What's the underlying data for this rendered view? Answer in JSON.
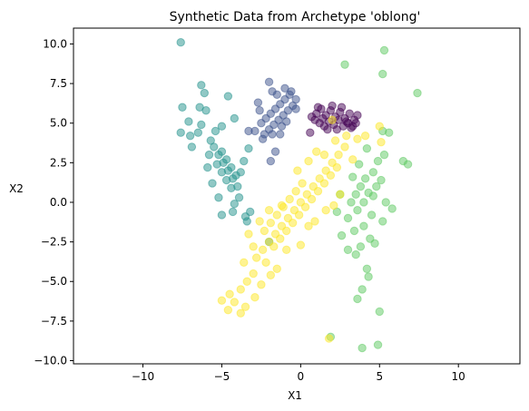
{
  "chart_data": {
    "type": "scatter",
    "title": "Synthetic Data from Archetype 'oblong'",
    "xlabel": "X1",
    "ylabel": "X2",
    "xlim": [
      -14.4,
      13.9
    ],
    "ylim": [
      -10.2,
      11.0
    ],
    "grid": false,
    "legend": "none",
    "marker_alpha": 0.5,
    "xticks": [
      {
        "value": -10,
        "label": "−10"
      },
      {
        "value": -5,
        "label": "−5"
      },
      {
        "value": 0,
        "label": "0"
      },
      {
        "value": 5,
        "label": "5"
      },
      {
        "value": 10,
        "label": "10"
      }
    ],
    "yticks": [
      {
        "value": -10,
        "label": "−10.0"
      },
      {
        "value": -7.5,
        "label": "−7.5"
      },
      {
        "value": -5,
        "label": "−5.0"
      },
      {
        "value": -2.5,
        "label": "−2.5"
      },
      {
        "value": 0,
        "label": "0.0"
      },
      {
        "value": 2.5,
        "label": "2.5"
      },
      {
        "value": 5,
        "label": "5.0"
      },
      {
        "value": 7.5,
        "label": "7.5"
      },
      {
        "value": 10,
        "label": "10.0"
      }
    ],
    "series": [
      {
        "color": "#440154",
        "points": [
          [
            1.0,
            5.6
          ],
          [
            1.3,
            5.9
          ],
          [
            1.6,
            5.5
          ],
          [
            1.9,
            5.8
          ],
          [
            2.2,
            5.4
          ],
          [
            2.5,
            5.7
          ],
          [
            2.8,
            5.3
          ],
          [
            3.1,
            5.6
          ],
          [
            3.4,
            5.2
          ],
          [
            1.2,
            5.0
          ],
          [
            1.5,
            4.8
          ],
          [
            1.8,
            5.1
          ],
          [
            2.1,
            4.9
          ],
          [
            2.4,
            5.2
          ],
          [
            2.7,
            4.8
          ],
          [
            3.0,
            5.0
          ],
          [
            3.3,
            4.8
          ],
          [
            0.9,
            5.2
          ],
          [
            0.7,
            5.4
          ],
          [
            3.6,
            5.5
          ],
          [
            2.0,
            6.1
          ],
          [
            2.6,
            6.0
          ],
          [
            1.4,
            5.3
          ],
          [
            2.9,
            5.1
          ],
          [
            0.6,
            4.4
          ],
          [
            1.7,
            4.6
          ],
          [
            2.3,
            4.6
          ],
          [
            3.2,
            4.7
          ],
          [
            1.1,
            6.0
          ],
          [
            3.5,
            5.0
          ]
        ]
      },
      {
        "color": "#3b528b",
        "points": [
          [
            -2.5,
            5.0
          ],
          [
            -2.2,
            5.3
          ],
          [
            -1.9,
            5.6
          ],
          [
            -1.6,
            5.9
          ],
          [
            -1.3,
            6.2
          ],
          [
            -1.0,
            6.5
          ],
          [
            -0.7,
            6.8
          ],
          [
            -2.0,
            4.6
          ],
          [
            -1.7,
            4.9
          ],
          [
            -1.4,
            5.2
          ],
          [
            -1.1,
            5.5
          ],
          [
            -0.8,
            5.8
          ],
          [
            -0.5,
            6.1
          ],
          [
            -2.3,
            4.3
          ],
          [
            -1.8,
            4.3
          ],
          [
            -1.2,
            4.8
          ],
          [
            -0.9,
            5.1
          ],
          [
            -0.3,
            5.9
          ],
          [
            -1.5,
            6.8
          ],
          [
            -1.0,
            7.2
          ],
          [
            -1.8,
            7.0
          ],
          [
            -2.0,
            7.6
          ],
          [
            -0.6,
            7.0
          ],
          [
            -2.6,
            5.8
          ],
          [
            -2.9,
            4.5
          ],
          [
            -2.4,
            4.0
          ],
          [
            -3.3,
            4.5
          ],
          [
            -1.9,
            2.6
          ],
          [
            -1.6,
            3.2
          ],
          [
            -0.3,
            6.5
          ],
          [
            -2.7,
            6.3
          ],
          [
            -1.3,
            4.3
          ]
        ]
      },
      {
        "color": "#21918c",
        "points": [
          [
            -5.5,
            3.5
          ],
          [
            -5.2,
            3.0
          ],
          [
            -4.9,
            2.5
          ],
          [
            -4.6,
            2.0
          ],
          [
            -4.3,
            1.5
          ],
          [
            -4.0,
            1.0
          ],
          [
            -5.0,
            3.2
          ],
          [
            -4.7,
            2.7
          ],
          [
            -4.4,
            2.2
          ],
          [
            -4.1,
            1.7
          ],
          [
            -5.3,
            2.4
          ],
          [
            -5.0,
            1.9
          ],
          [
            -4.7,
            1.4
          ],
          [
            -4.4,
            0.9
          ],
          [
            -5.7,
            3.9
          ],
          [
            -5.4,
            4.5
          ],
          [
            -5.0,
            4.8
          ],
          [
            -6.3,
            4.9
          ],
          [
            -6.5,
            4.4
          ],
          [
            -7.1,
            5.1
          ],
          [
            -7.5,
            6.0
          ],
          [
            -7.6,
            4.4
          ],
          [
            -6.4,
            6.0
          ],
          [
            -6.3,
            7.4
          ],
          [
            -6.1,
            6.9
          ],
          [
            -4.6,
            6.7
          ],
          [
            -4.2,
            5.3
          ],
          [
            -3.3,
            3.4
          ],
          [
            -3.6,
            2.6
          ],
          [
            -3.9,
            0.3
          ],
          [
            -3.2,
            -0.6
          ],
          [
            -3.4,
            -1.2
          ],
          [
            -4.3,
            -0.6
          ],
          [
            -5.0,
            -0.8
          ],
          [
            -5.2,
            0.3
          ],
          [
            -5.6,
            1.2
          ],
          [
            -5.9,
            2.2
          ],
          [
            -7.0,
            4.2
          ],
          [
            -6.0,
            5.8
          ],
          [
            -7.6,
            10.1
          ],
          [
            -4.2,
            -0.1
          ],
          [
            -3.5,
            -0.9
          ],
          [
            -2.0,
            -2.5
          ],
          [
            -6.9,
            3.5
          ],
          [
            -5.8,
            3.0
          ],
          [
            -3.8,
            1.9
          ]
        ]
      },
      {
        "color": "#5ec962",
        "points": [
          [
            3.5,
            0.5
          ],
          [
            3.8,
            1.0
          ],
          [
            4.1,
            1.5
          ],
          [
            3.2,
            0.0
          ],
          [
            3.6,
            -0.5
          ],
          [
            4.0,
            0.0
          ],
          [
            4.3,
            0.6
          ],
          [
            4.5,
            -0.8
          ],
          [
            3.0,
            -1.0
          ],
          [
            3.3,
            1.6
          ],
          [
            4.6,
            1.9
          ],
          [
            4.9,
            2.6
          ],
          [
            4.2,
            3.4
          ],
          [
            3.7,
            2.4
          ],
          [
            4.0,
            -1.5
          ],
          [
            4.4,
            -2.3
          ],
          [
            3.8,
            -2.8
          ],
          [
            3.5,
            -3.3
          ],
          [
            4.2,
            -4.2
          ],
          [
            3.9,
            -5.5
          ],
          [
            3.6,
            -6.1
          ],
          [
            4.3,
            -4.7
          ],
          [
            5.0,
            -6.9
          ],
          [
            4.9,
            -9.0
          ],
          [
            3.9,
            -9.2
          ],
          [
            1.9,
            -8.5
          ],
          [
            3.0,
            -3.0
          ],
          [
            2.6,
            -2.1
          ],
          [
            2.3,
            -0.6
          ],
          [
            2.5,
            0.5
          ],
          [
            5.2,
            -1.2
          ],
          [
            5.4,
            0.0
          ],
          [
            5.1,
            1.4
          ],
          [
            5.3,
            3.0
          ],
          [
            6.5,
            2.6
          ],
          [
            6.8,
            2.4
          ],
          [
            7.4,
            6.9
          ],
          [
            5.3,
            9.6
          ],
          [
            5.2,
            8.1
          ],
          [
            2.8,
            8.7
          ],
          [
            5.2,
            4.5
          ],
          [
            5.6,
            4.4
          ],
          [
            4.8,
            1.0
          ],
          [
            5.8,
            -0.4
          ],
          [
            4.6,
            0.4
          ],
          [
            3.4,
            -1.8
          ],
          [
            4.7,
            -2.6
          ]
        ]
      },
      {
        "color": "#fde725",
        "points": [
          [
            -2.0,
            -2.5
          ],
          [
            -1.6,
            -2.0
          ],
          [
            -1.2,
            -1.5
          ],
          [
            -0.8,
            -1.0
          ],
          [
            -0.4,
            -0.5
          ],
          [
            0.0,
            0.0
          ],
          [
            0.4,
            0.5
          ],
          [
            0.8,
            1.0
          ],
          [
            1.2,
            1.5
          ],
          [
            1.6,
            2.0
          ],
          [
            2.0,
            2.5
          ],
          [
            2.4,
            3.0
          ],
          [
            2.8,
            3.5
          ],
          [
            -1.7,
            -2.8
          ],
          [
            -1.3,
            -2.3
          ],
          [
            -0.9,
            -1.8
          ],
          [
            -0.5,
            -1.3
          ],
          [
            -0.1,
            -0.8
          ],
          [
            0.3,
            -0.3
          ],
          [
            0.7,
            0.2
          ],
          [
            1.1,
            0.7
          ],
          [
            1.5,
            1.2
          ],
          [
            1.9,
            1.7
          ],
          [
            2.3,
            2.2
          ],
          [
            -2.3,
            -1.8
          ],
          [
            -1.9,
            -1.3
          ],
          [
            -1.5,
            -0.8
          ],
          [
            -1.1,
            -0.3
          ],
          [
            -0.7,
            0.2
          ],
          [
            -0.3,
            0.7
          ],
          [
            0.1,
            1.2
          ],
          [
            -2.8,
            -3.5
          ],
          [
            -2.4,
            -3.0
          ],
          [
            -3.0,
            -4.5
          ],
          [
            -3.4,
            -5.0
          ],
          [
            -3.8,
            -5.5
          ],
          [
            -4.2,
            -6.3
          ],
          [
            -4.5,
            -5.8
          ],
          [
            -5.0,
            -6.2
          ],
          [
            -4.6,
            -6.8
          ],
          [
            -3.8,
            -7.0
          ],
          [
            -3.5,
            -6.6
          ],
          [
            -2.9,
            -6.0
          ],
          [
            -2.5,
            -5.2
          ],
          [
            -3.6,
            -3.8
          ],
          [
            -3.0,
            -2.8
          ],
          [
            -2.2,
            -3.8
          ],
          [
            -1.5,
            -4.2
          ],
          [
            -1.9,
            -4.6
          ],
          [
            0.0,
            -2.7
          ],
          [
            0.5,
            -1.5
          ],
          [
            0.9,
            -1.2
          ],
          [
            1.6,
            -0.5
          ],
          [
            2.1,
            -0.2
          ],
          [
            2.5,
            0.5
          ],
          [
            3.3,
            2.7
          ],
          [
            3.6,
            4.0
          ],
          [
            4.1,
            4.2
          ],
          [
            5.0,
            4.8
          ],
          [
            5.1,
            3.8
          ],
          [
            1.0,
            3.2
          ],
          [
            0.5,
            2.6
          ],
          [
            1.5,
            3.0
          ],
          [
            2.2,
            3.9
          ],
          [
            2.0,
            5.2
          ],
          [
            -1.2,
            -0.2
          ],
          [
            -2.6,
            -1.2
          ],
          [
            -2.0,
            -0.5
          ],
          [
            -0.2,
            2.0
          ],
          [
            1.8,
            -8.6
          ],
          [
            2.9,
            4.2
          ],
          [
            -3.3,
            -2.0
          ],
          [
            -0.9,
            -3.0
          ]
        ]
      }
    ]
  }
}
